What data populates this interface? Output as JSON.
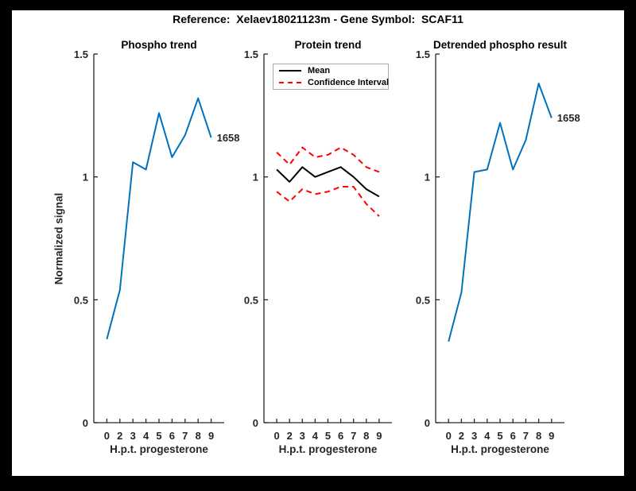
{
  "figure": {
    "title": "Reference:  Xelaev18021123m - Gene Symbol:  SCAF11"
  },
  "colors": {
    "blue": "#0072bd",
    "red": "#ff0000",
    "black": "#000000",
    "axis": "#262626",
    "panel_bg": "#ffffff",
    "frame_bg": "#000000"
  },
  "axis": {
    "ylabel": "Normalized signal"
  },
  "chart_data": [
    {
      "type": "line",
      "title": "Phospho trend",
      "xlabel": "H.p.t. progesterone",
      "ylabel": "Normalized signal",
      "x_labels": [
        "0",
        "2",
        "3",
        "4",
        "5",
        "6",
        "7",
        "8",
        "9"
      ],
      "ylim": [
        0,
        1.5
      ],
      "yticks": [
        0,
        0.5,
        1,
        1.5
      ],
      "ytick_labels": [
        "0",
        "0.5",
        "1",
        "1.5"
      ],
      "grid": false,
      "series": [
        {
          "name": "1658",
          "color": "#0072bd",
          "dash": false,
          "values": [
            0.34,
            0.54,
            1.06,
            1.03,
            1.26,
            1.08,
            1.17,
            1.32,
            1.16
          ]
        }
      ],
      "annotation": {
        "text": "1658"
      }
    },
    {
      "type": "line",
      "title": "Protein trend",
      "xlabel": "H.p.t. progesterone",
      "ylabel": "Normalized signal",
      "x_labels": [
        "0",
        "2",
        "3",
        "4",
        "5",
        "6",
        "7",
        "8",
        "9"
      ],
      "ylim": [
        0,
        1.5
      ],
      "yticks": [
        0,
        0.5,
        1,
        1.5
      ],
      "ytick_labels": [
        "0",
        "0.5",
        "1",
        "1.5"
      ],
      "grid": false,
      "legend": {
        "position": "top-left",
        "entries": [
          {
            "label": "Mean",
            "style": "solid-black"
          },
          {
            "label": "Confidence Interval",
            "style": "dashed-red"
          }
        ]
      },
      "series": [
        {
          "name": "Mean",
          "color": "#000000",
          "dash": false,
          "values": [
            1.03,
            0.98,
            1.04,
            1.0,
            1.02,
            1.04,
            1.0,
            0.95,
            0.92
          ]
        },
        {
          "name": "Confidence Interval upper",
          "color": "#ff0000",
          "dash": true,
          "values": [
            1.1,
            1.05,
            1.12,
            1.08,
            1.09,
            1.12,
            1.09,
            1.04,
            1.02
          ]
        },
        {
          "name": "Confidence Interval lower",
          "color": "#ff0000",
          "dash": true,
          "values": [
            0.94,
            0.9,
            0.95,
            0.93,
            0.94,
            0.96,
            0.96,
            0.89,
            0.84
          ]
        }
      ]
    },
    {
      "type": "line",
      "title": "Detrended phospho result",
      "xlabel": "H.p.t. progesterone",
      "ylabel": "Normalized signal",
      "x_labels": [
        "0",
        "2",
        "3",
        "4",
        "5",
        "6",
        "7",
        "8",
        "9"
      ],
      "ylim": [
        0,
        1.5
      ],
      "yticks": [
        0,
        0.5,
        1,
        1.5
      ],
      "ytick_labels": [
        "0",
        "0.5",
        "1",
        "1.5"
      ],
      "grid": false,
      "series": [
        {
          "name": "1658",
          "color": "#0072bd",
          "dash": false,
          "values": [
            0.33,
            0.53,
            1.02,
            1.03,
            1.22,
            1.03,
            1.15,
            1.38,
            1.24
          ]
        }
      ],
      "annotation": {
        "text": "1658"
      }
    }
  ]
}
